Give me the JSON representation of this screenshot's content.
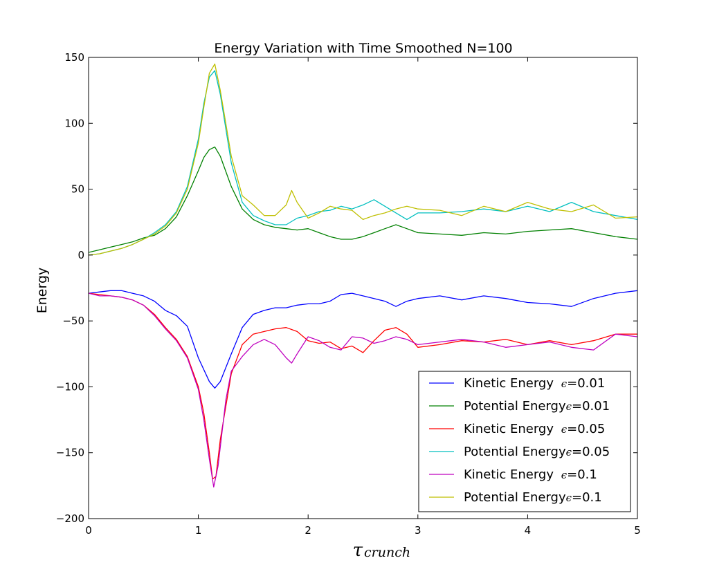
{
  "chart_data": {
    "type": "line",
    "title": "Energy Variation with Time Smoothed N=100",
    "xlabel": "τ",
    "xlabel_sub": "crunch",
    "ylabel": "Energy",
    "xlim": [
      0,
      5
    ],
    "ylim": [
      -200,
      150
    ],
    "xticks": [
      0,
      1,
      2,
      3,
      4,
      5
    ],
    "yticks": [
      -200,
      -150,
      -100,
      -50,
      0,
      50,
      100,
      150
    ],
    "grid": false,
    "legend_position": "bottom-right",
    "series": [
      {
        "name": "Kinetic Energy ϵ=0.01",
        "label_main": "Kinetic Energy ",
        "label_eps": "ϵ",
        "label_val": "=0.01",
        "color": "#0000ff",
        "x": [
          0,
          0.1,
          0.2,
          0.3,
          0.4,
          0.5,
          0.6,
          0.7,
          0.8,
          0.9,
          1.0,
          1.1,
          1.15,
          1.2,
          1.3,
          1.4,
          1.5,
          1.6,
          1.7,
          1.8,
          1.9,
          2.0,
          2.1,
          2.2,
          2.3,
          2.4,
          2.5,
          2.6,
          2.7,
          2.8,
          2.9,
          3.0,
          3.2,
          3.4,
          3.6,
          3.8,
          4.0,
          4.2,
          4.4,
          4.6,
          4.8,
          5.0
        ],
        "y": [
          -29,
          -28,
          -27,
          -27,
          -29,
          -31,
          -35,
          -42,
          -46,
          -54,
          -78,
          -96,
          -101,
          -96,
          -75,
          -55,
          -45,
          -42,
          -40,
          -40,
          -38,
          -37,
          -37,
          -35,
          -30,
          -29,
          -31,
          -33,
          -35,
          -39,
          -35,
          -33,
          -31,
          -34,
          -31,
          -33,
          -36,
          -37,
          -39,
          -33,
          -29,
          -27
        ]
      },
      {
        "name": "Potential Energyϵ=0.01",
        "label_main": "Potential Energy",
        "label_eps": "ϵ",
        "label_val": "=0.01",
        "color": "#008000",
        "x": [
          0,
          0.1,
          0.2,
          0.3,
          0.4,
          0.5,
          0.6,
          0.7,
          0.8,
          0.9,
          1.0,
          1.05,
          1.1,
          1.15,
          1.2,
          1.3,
          1.4,
          1.5,
          1.6,
          1.7,
          1.8,
          1.9,
          2.0,
          2.1,
          2.2,
          2.3,
          2.4,
          2.5,
          2.6,
          2.7,
          2.8,
          2.9,
          3.0,
          3.2,
          3.4,
          3.6,
          3.8,
          4.0,
          4.2,
          4.4,
          4.6,
          4.8,
          5.0
        ],
        "y": [
          2,
          4,
          6,
          8,
          10,
          13,
          15,
          20,
          29,
          45,
          64,
          74,
          80,
          82,
          75,
          52,
          35,
          27,
          23,
          21,
          20,
          19,
          20,
          17,
          14,
          12,
          12,
          14,
          17,
          20,
          23,
          20,
          17,
          16,
          15,
          17,
          16,
          18,
          19,
          20,
          17,
          14,
          12
        ]
      },
      {
        "name": "Kinetic Energy ϵ=0.05",
        "label_main": "Kinetic Energy ",
        "label_eps": "ϵ",
        "label_val": "=0.05",
        "color": "#ff0000",
        "x": [
          0,
          0.1,
          0.2,
          0.3,
          0.4,
          0.5,
          0.6,
          0.7,
          0.8,
          0.9,
          1.0,
          1.05,
          1.1,
          1.13,
          1.16,
          1.2,
          1.3,
          1.4,
          1.5,
          1.6,
          1.7,
          1.8,
          1.9,
          2.0,
          2.1,
          2.2,
          2.3,
          2.4,
          2.5,
          2.6,
          2.7,
          2.8,
          2.9,
          3.0,
          3.2,
          3.4,
          3.6,
          3.8,
          4.0,
          4.2,
          4.4,
          4.6,
          4.8,
          5.0
        ],
        "y": [
          -29,
          -30,
          -31,
          -32,
          -34,
          -38,
          -45,
          -55,
          -64,
          -77,
          -100,
          -120,
          -150,
          -170,
          -168,
          -140,
          -90,
          -68,
          -60,
          -58,
          -56,
          -55,
          -58,
          -65,
          -67,
          -66,
          -71,
          -69,
          -74,
          -65,
          -57,
          -55,
          -60,
          -70,
          -68,
          -65,
          -66,
          -64,
          -68,
          -65,
          -68,
          -65,
          -60,
          -60
        ]
      },
      {
        "name": "Potential Energyϵ=0.05",
        "label_main": "Potential Energy",
        "label_eps": "ϵ",
        "label_val": "=0.05",
        "color": "#00bfbf",
        "x": [
          0,
          0.1,
          0.2,
          0.3,
          0.4,
          0.5,
          0.6,
          0.7,
          0.8,
          0.9,
          1.0,
          1.05,
          1.1,
          1.15,
          1.2,
          1.3,
          1.4,
          1.5,
          1.6,
          1.7,
          1.8,
          1.9,
          2.0,
          2.1,
          2.2,
          2.3,
          2.4,
          2.5,
          2.6,
          2.7,
          2.8,
          2.9,
          3.0,
          3.2,
          3.4,
          3.6,
          3.8,
          4.0,
          4.2,
          4.4,
          4.6,
          4.8,
          5.0
        ],
        "y": [
          0,
          1,
          3,
          5,
          8,
          12,
          17,
          23,
          33,
          52,
          88,
          115,
          135,
          140,
          122,
          70,
          40,
          30,
          26,
          23,
          23,
          28,
          30,
          33,
          34,
          37,
          35,
          38,
          42,
          37,
          32,
          27,
          32,
          32,
          33,
          35,
          33,
          37,
          33,
          40,
          33,
          30,
          27
        ]
      },
      {
        "name": "Kinetic Energy ϵ=0.1",
        "label_main": "Kinetic Energy ",
        "label_eps": "ϵ",
        "label_val": "=0.1",
        "color": "#bf00bf",
        "x": [
          0,
          0.1,
          0.2,
          0.3,
          0.4,
          0.5,
          0.6,
          0.7,
          0.8,
          0.9,
          1.0,
          1.05,
          1.1,
          1.14,
          1.18,
          1.25,
          1.3,
          1.4,
          1.5,
          1.6,
          1.7,
          1.8,
          1.85,
          1.9,
          2.0,
          2.1,
          2.2,
          2.3,
          2.4,
          2.5,
          2.6,
          2.7,
          2.8,
          2.9,
          3.0,
          3.2,
          3.4,
          3.6,
          3.8,
          4.0,
          4.2,
          4.4,
          4.6,
          4.8,
          5.0
        ],
        "y": [
          -29,
          -31,
          -31,
          -32,
          -34,
          -38,
          -46,
          -56,
          -65,
          -78,
          -102,
          -125,
          -155,
          -176,
          -160,
          -110,
          -88,
          -77,
          -68,
          -64,
          -68,
          -78,
          -82,
          -75,
          -62,
          -65,
          -70,
          -72,
          -62,
          -63,
          -67,
          -65,
          -62,
          -64,
          -68,
          -66,
          -64,
          -66,
          -70,
          -68,
          -66,
          -70,
          -72,
          -60,
          -62
        ]
      },
      {
        "name": "Potential Energyϵ=0.1",
        "label_main": "Potential Energy",
        "label_eps": "ϵ",
        "label_val": "=0.1",
        "color": "#bfbf00",
        "x": [
          0,
          0.1,
          0.2,
          0.3,
          0.4,
          0.5,
          0.6,
          0.7,
          0.8,
          0.9,
          1.0,
          1.05,
          1.1,
          1.15,
          1.2,
          1.3,
          1.4,
          1.5,
          1.6,
          1.7,
          1.8,
          1.85,
          1.9,
          2.0,
          2.1,
          2.2,
          2.3,
          2.4,
          2.5,
          2.6,
          2.7,
          2.8,
          2.9,
          3.0,
          3.2,
          3.4,
          3.6,
          3.8,
          4.0,
          4.2,
          4.4,
          4.6,
          4.8,
          5.0
        ],
        "y": [
          0,
          1,
          3,
          5,
          8,
          12,
          16,
          22,
          32,
          50,
          85,
          112,
          138,
          145,
          125,
          75,
          45,
          38,
          30,
          30,
          38,
          49,
          40,
          28,
          32,
          37,
          35,
          34,
          27,
          30,
          32,
          35,
          37,
          35,
          34,
          30,
          37,
          33,
          40,
          35,
          33,
          38,
          28,
          29
        ]
      }
    ]
  }
}
